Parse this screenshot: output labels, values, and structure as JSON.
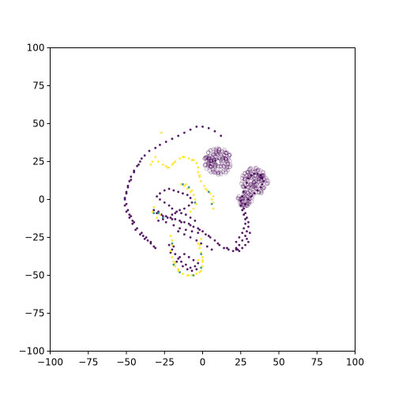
{
  "chart_data": {
    "type": "scatter",
    "title": "",
    "xlabel": "",
    "ylabel": "",
    "xlim": [
      -100,
      100
    ],
    "ylim": [
      -100,
      100
    ],
    "grid": false,
    "legend": "none",
    "x_ticks": [
      -100,
      -75,
      -50,
      -25,
      0,
      25,
      50,
      75,
      100
    ],
    "y_ticks": [
      -100,
      -75,
      -50,
      -25,
      0,
      25,
      50,
      75,
      100
    ],
    "x_tick_labels": [
      "−100",
      "−75",
      "−50",
      "−25",
      "0",
      "25",
      "50",
      "75",
      "100"
    ],
    "y_tick_labels": [
      "−100",
      "−75",
      "−50",
      "−25",
      "0",
      "25",
      "50",
      "75",
      "100"
    ],
    "colors": {
      "class_0": "#440154",
      "class_1": "#fde725",
      "class_mid": "#21918c"
    },
    "series": [
      {
        "color": "class_0",
        "points": [
          [
            -31,
            -32
          ],
          [
            -34,
            -29
          ],
          [
            -38,
            -26
          ],
          [
            -41,
            -23
          ],
          [
            -44,
            -20
          ],
          [
            -46,
            -16
          ],
          [
            -48,
            -12
          ],
          [
            -50,
            -8
          ],
          [
            -51,
            -4
          ],
          [
            -51,
            0
          ],
          [
            -50,
            4
          ],
          [
            -49,
            8
          ],
          [
            -48,
            12
          ],
          [
            -47,
            15
          ],
          [
            -45,
            19
          ],
          [
            -43,
            22
          ],
          [
            -41,
            25
          ],
          [
            -38,
            29
          ],
          [
            -35,
            32
          ],
          [
            -31,
            34
          ],
          [
            -28,
            36
          ],
          [
            -24,
            38
          ],
          [
            -20,
            40
          ],
          [
            -16,
            42
          ],
          [
            -12,
            44
          ],
          [
            -8,
            46
          ],
          [
            -4,
            48
          ],
          [
            0,
            48
          ],
          [
            4,
            47
          ],
          [
            8,
            45
          ],
          [
            12,
            42
          ],
          [
            -40,
            27
          ],
          [
            -42,
            23
          ],
          [
            -45,
            18
          ],
          [
            -47,
            13
          ],
          [
            -49,
            9
          ],
          [
            -50,
            5
          ],
          [
            -51,
            1
          ],
          [
            -50,
            -3
          ],
          [
            -49,
            -7
          ],
          [
            -47,
            -11
          ],
          [
            -45,
            -15
          ],
          [
            -43,
            -19
          ],
          [
            -40,
            -22
          ],
          [
            -37,
            -25
          ],
          [
            -34,
            -28
          ],
          [
            -32,
            -31
          ],
          [
            -36,
            -27
          ],
          [
            -39,
            -24
          ],
          [
            -46,
            -14
          ],
          [
            -48,
            -10
          ]
        ]
      },
      {
        "color": "class_0",
        "points": [
          [
            -32,
            -7
          ],
          [
            -30,
            -9
          ],
          [
            -27,
            -10
          ],
          [
            -24,
            -11
          ],
          [
            -21,
            -12
          ],
          [
            -18,
            -13
          ],
          [
            -15,
            -14
          ],
          [
            -12,
            -15
          ],
          [
            -9,
            -16
          ],
          [
            -6,
            -18
          ],
          [
            -3,
            -19
          ],
          [
            0,
            -21
          ],
          [
            2,
            -23
          ],
          [
            5,
            -25
          ],
          [
            8,
            -27
          ],
          [
            11,
            -30
          ],
          [
            14,
            -32
          ],
          [
            17,
            -33
          ],
          [
            20,
            -34
          ],
          [
            23,
            -33
          ],
          [
            -29,
            -8
          ],
          [
            -26,
            -11
          ],
          [
            -20,
            -13
          ],
          [
            -14,
            -15
          ],
          [
            -8,
            -17
          ],
          [
            -2,
            -20
          ],
          [
            4,
            -24
          ],
          [
            10,
            -29
          ],
          [
            16,
            -32
          ],
          [
            22,
            -33
          ],
          [
            -22,
            -4
          ],
          [
            -20,
            -6
          ],
          [
            -17,
            -8
          ],
          [
            -14,
            -9
          ],
          [
            -11,
            -10
          ],
          [
            -8,
            -12
          ],
          [
            -5,
            -14
          ],
          [
            -25,
            -2
          ],
          [
            -28,
            0
          ],
          [
            -30,
            2
          ],
          [
            -28,
            4
          ],
          [
            -25,
            6
          ],
          [
            -22,
            7
          ],
          [
            -19,
            6
          ],
          [
            -16,
            5
          ],
          [
            -13,
            4
          ],
          [
            -10,
            3
          ],
          [
            -8,
            1
          ],
          [
            -7,
            -2
          ],
          [
            -9,
            -4
          ],
          [
            -12,
            -6
          ],
          [
            -15,
            -7
          ],
          [
            -18,
            -9
          ],
          [
            -20,
            -10
          ],
          [
            -23,
            -12
          ],
          [
            -26,
            -13
          ],
          [
            -29,
            -14
          ],
          [
            -24,
            -15
          ],
          [
            -19,
            -17
          ],
          [
            -15,
            -19
          ],
          [
            -11,
            -20
          ],
          [
            -7,
            -21
          ],
          [
            -3,
            -22
          ],
          [
            -16,
            -21
          ],
          [
            -12,
            -23
          ],
          [
            -8,
            -25
          ],
          [
            -4,
            -27
          ],
          [
            -1,
            -29
          ],
          [
            3,
            -31
          ],
          [
            6,
            -33
          ]
        ]
      },
      {
        "color": "class_0",
        "points": [
          [
            -22,
            -30
          ],
          [
            -20,
            -33
          ],
          [
            -18,
            -36
          ],
          [
            -16,
            -39
          ],
          [
            -14,
            -41
          ],
          [
            -11,
            -43
          ],
          [
            -8,
            -45
          ],
          [
            -5,
            -44
          ],
          [
            -3,
            -42
          ],
          [
            -6,
            -40
          ],
          [
            -9,
            -38
          ],
          [
            -12,
            -36
          ],
          [
            -15,
            -38
          ],
          [
            -17,
            -41
          ],
          [
            -13,
            -44
          ],
          [
            -10,
            -46
          ],
          [
            -7,
            -47
          ],
          [
            -4,
            -46
          ],
          [
            -19,
            -31
          ],
          [
            -21,
            -35
          ]
        ]
      },
      {
        "color": "class_0",
        "points": [
          [
            22,
            -28
          ],
          [
            24,
            -25
          ],
          [
            26,
            -22
          ],
          [
            27,
            -19
          ],
          [
            28,
            -16
          ],
          [
            28,
            -13
          ],
          [
            27,
            -10
          ],
          [
            26,
            -7
          ],
          [
            25,
            -4
          ],
          [
            25,
            -1
          ],
          [
            26,
            2
          ],
          [
            27,
            5
          ],
          [
            28,
            8
          ],
          [
            29,
            11
          ],
          [
            30,
            14
          ],
          [
            32,
            16
          ],
          [
            34,
            17
          ],
          [
            36,
            17
          ],
          [
            38,
            16
          ],
          [
            39,
            14
          ],
          [
            40,
            12
          ],
          [
            39,
            10
          ],
          [
            38,
            8
          ],
          [
            36,
            6
          ],
          [
            34,
            4
          ],
          [
            32,
            2
          ],
          [
            30,
            0
          ],
          [
            28,
            -3
          ],
          [
            27,
            -6
          ],
          [
            28,
            -9
          ],
          [
            29,
            -12
          ],
          [
            30,
            -15
          ],
          [
            30,
            -18
          ],
          [
            29,
            -21
          ],
          [
            28,
            -24
          ],
          [
            26,
            -27
          ],
          [
            24,
            -30
          ],
          [
            22,
            -32
          ],
          [
            29,
            -26
          ],
          [
            31,
            -22
          ],
          [
            30,
            -28
          ],
          [
            28,
            -30
          ],
          [
            26,
            -32
          ],
          [
            24,
            -34
          ]
        ]
      },
      {
        "color": "class_1",
        "points": [
          [
            -32,
            -5
          ],
          [
            -33,
            -8
          ],
          [
            -30,
            -12
          ],
          [
            -28,
            -10
          ],
          [
            -31,
            28
          ],
          [
            -29,
            25
          ],
          [
            -26,
            23
          ],
          [
            -24,
            22
          ],
          [
            -22,
            21
          ],
          [
            -20,
            23
          ],
          [
            -18,
            25
          ],
          [
            -15,
            27
          ],
          [
            -12,
            28
          ],
          [
            -9,
            27
          ],
          [
            -6,
            26
          ],
          [
            -4,
            24
          ],
          [
            -3,
            21
          ],
          [
            -3,
            18
          ],
          [
            -2,
            15
          ],
          [
            -1,
            12
          ],
          [
            1,
            9
          ],
          [
            3,
            6
          ],
          [
            5,
            4
          ],
          [
            7,
            2
          ],
          [
            7,
            -2
          ],
          [
            7,
            -6
          ],
          [
            -23,
            21
          ],
          [
            -19,
            24
          ],
          [
            -13,
            28
          ],
          [
            -7,
            26
          ],
          [
            -2,
            16
          ],
          [
            2,
            7
          ],
          [
            6,
            0
          ],
          [
            -34,
            23
          ],
          [
            -27,
            44
          ],
          [
            -33,
            25
          ],
          [
            -14,
            10
          ],
          [
            -12,
            9
          ],
          [
            -10,
            7
          ],
          [
            -8,
            5
          ],
          [
            -6,
            3
          ],
          [
            -5,
            0
          ],
          [
            -4,
            -3
          ],
          [
            -6,
            -6
          ],
          [
            -8,
            -8
          ],
          [
            -11,
            10
          ],
          [
            -9,
            8
          ],
          [
            -7,
            6
          ],
          [
            -21,
            -24
          ],
          [
            -20,
            -27
          ],
          [
            -20,
            -30
          ],
          [
            -21,
            -34
          ],
          [
            -20,
            -38
          ],
          [
            -19,
            -41
          ],
          [
            -18,
            -44
          ],
          [
            -16,
            -47
          ],
          [
            -13,
            -49
          ],
          [
            -10,
            -50
          ],
          [
            -7,
            -50
          ],
          [
            -4,
            -49
          ],
          [
            -1,
            -47
          ],
          [
            0,
            -44
          ],
          [
            0,
            -41
          ],
          [
            0,
            -38
          ],
          [
            -1,
            -35
          ],
          [
            -2,
            -32
          ],
          [
            -3,
            -29
          ],
          [
            -1,
            -26
          ],
          [
            -16,
            -46
          ],
          [
            -9,
            -50
          ],
          [
            -2,
            -48
          ],
          [
            0,
            -40
          ],
          [
            -2,
            -30
          ],
          [
            -18,
            -42
          ],
          [
            -3,
            -40
          ]
        ]
      },
      {
        "color": "class_mid",
        "points": [
          [
            -32,
            -9
          ],
          [
            -29,
            -9
          ],
          [
            -26,
            -12
          ],
          [
            -13,
            10
          ],
          [
            -9,
            8
          ],
          [
            -5,
            -2
          ],
          [
            -20,
            -29
          ],
          [
            -19,
            -43
          ],
          [
            -15,
            -48
          ],
          [
            -6,
            -50
          ],
          [
            -1,
            -45
          ],
          [
            -1,
            -36
          ],
          [
            6,
            -3
          ],
          [
            4,
            5
          ]
        ]
      }
    ],
    "clusters": [
      {
        "color": "class_0",
        "center": [
          10,
          25
        ],
        "radius": 9,
        "count": 170,
        "style": "hollow-ring"
      },
      {
        "color": "class_0",
        "center": [
          34,
          12
        ],
        "radius": 9,
        "count": 150,
        "style": "hollow-ring"
      },
      {
        "color": "class_0",
        "center": [
          28,
          0
        ],
        "radius": 5,
        "count": 60,
        "style": "hollow-ring"
      }
    ]
  }
}
